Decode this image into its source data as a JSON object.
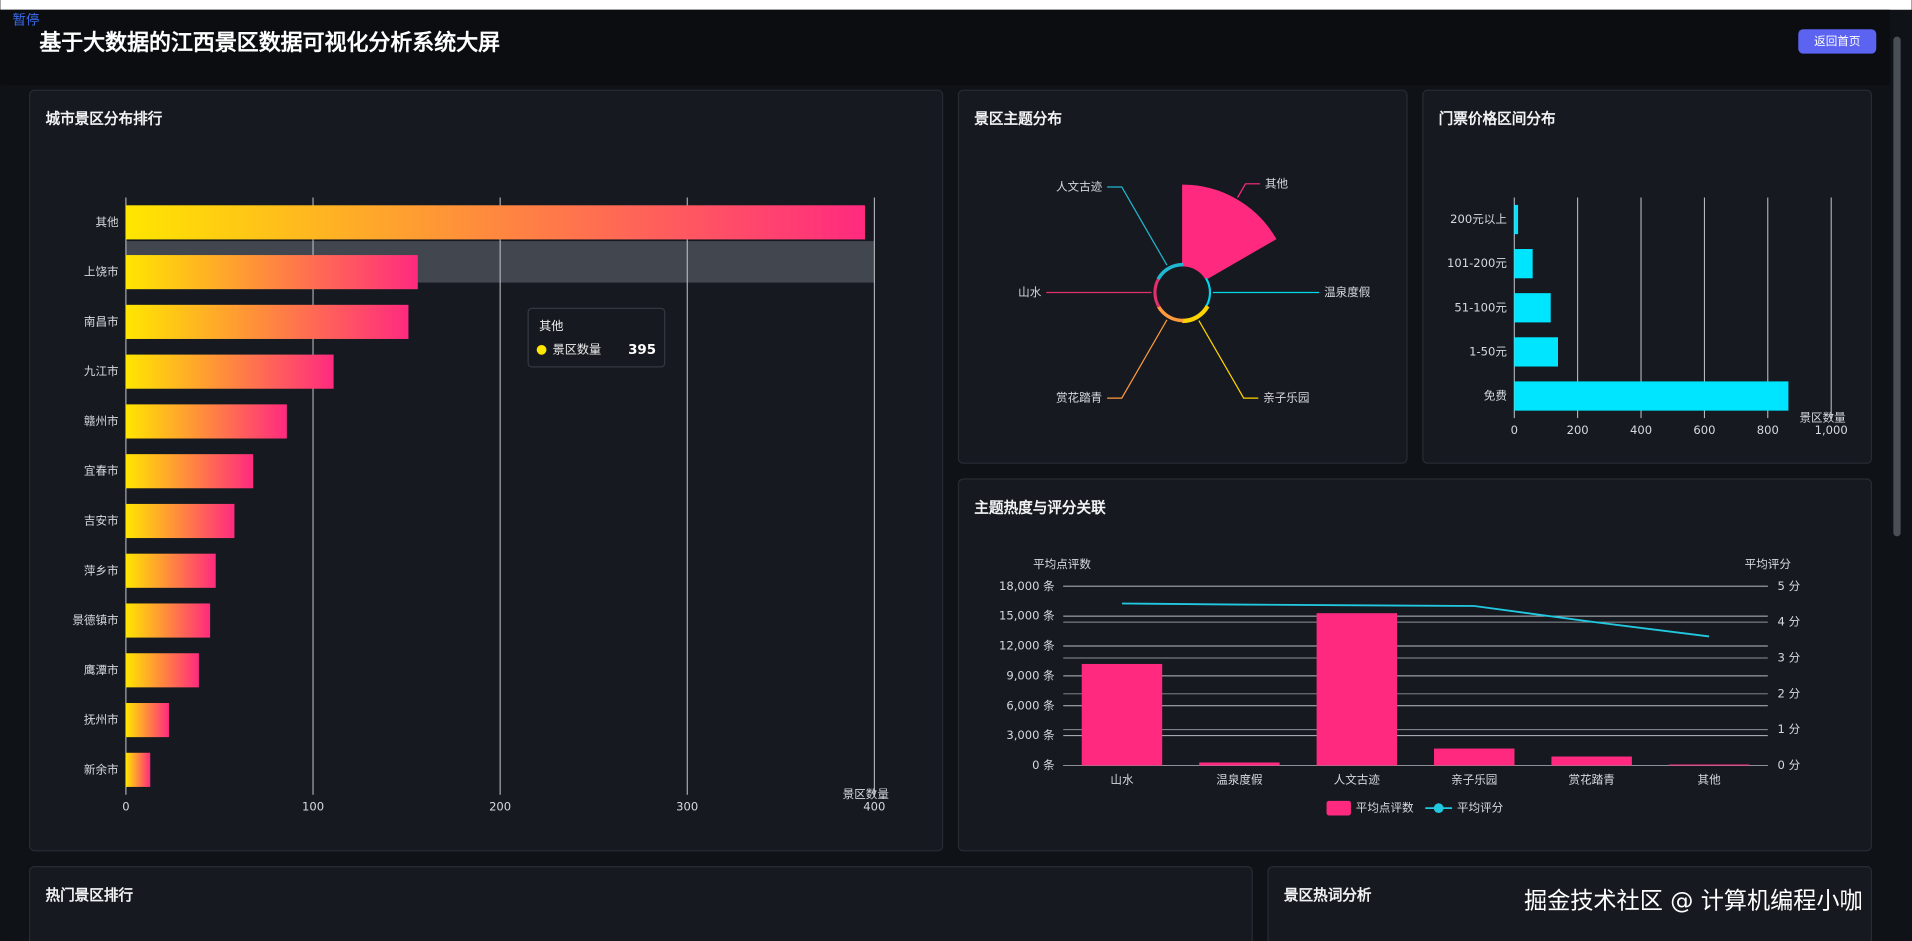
{
  "header": {
    "pause_label": "暂停",
    "title": "基于大数据的江西景区数据可视化分析系统大屏",
    "button": "返回首页"
  },
  "chart_data": [
    {
      "type": "barh",
      "title": "城市景区分布排行",
      "categories": [
        "其他",
        "上饶市",
        "南昌市",
        "九江市",
        "赣州市",
        "宜春市",
        "吉安市",
        "萍乡市",
        "景德镇市",
        "鹰潭市",
        "抚州市",
        "新余市"
      ],
      "series": [
        {
          "name": "景区数量",
          "color": [
            "#ffe600",
            "#ff2a7f"
          ],
          "values": [
            395,
            156,
            151,
            111,
            86,
            68,
            58,
            48,
            45,
            39,
            23,
            13
          ]
        }
      ],
      "xlabel": "景区数量",
      "xlim": [
        0,
        400
      ],
      "xticks": [
        0,
        100,
        200,
        300,
        400
      ],
      "grid": true
    },
    {
      "type": "pie",
      "title": "景区主题分布",
      "rose_type": "area",
      "categories": [
        "其他",
        "温泉度假",
        "亲子乐园",
        "赏花踏青",
        "山水",
        "人文古迹"
      ],
      "values": [
        1050,
        12,
        40,
        30,
        25,
        30
      ],
      "colors": [
        "#ff2a7f",
        "#00d8f0",
        "#ffd400",
        "#ff9a3c",
        "#e0306a",
        "#1fb8d0"
      ]
    },
    {
      "type": "barh",
      "title": "门票价格区间分布",
      "categories": [
        "200元以上",
        "101-200元",
        "51-100元",
        "1-50元",
        "免费"
      ],
      "series": [
        {
          "name": "景区数量",
          "color": "#00e5ff",
          "values": [
            12,
            58,
            115,
            138,
            865
          ]
        }
      ],
      "xlabel": "景区数量",
      "xlim": [
        0,
        1000
      ],
      "xticks": [
        0,
        200,
        400,
        600,
        800,
        {
          "value": 1000,
          "label": "1,000"
        }
      ],
      "grid": true
    },
    {
      "type": "bar",
      "title": "主题热度与评分关联",
      "categories": [
        "山水",
        "温泉度假",
        "人文古迹",
        "亲子乐园",
        "赏花踏青",
        "其他"
      ],
      "series": [
        {
          "name": "平均点评数",
          "color": "#ff2a7f",
          "values": [
            10200,
            300,
            15300,
            1700,
            900,
            100
          ]
        },
        {
          "name": "平均评分",
          "type": "line",
          "axis": "y2",
          "color": "#22c8e0",
          "values": [
            4.52,
            4.49,
            4.47,
            4.45,
            4.01,
            3.6
          ]
        }
      ],
      "ylabel": "平均点评数",
      "y2label": "平均评分",
      "ylim": [
        0,
        18000
      ],
      "yticks": [
        {
          "value": 0,
          "label": "0 条"
        },
        {
          "value": 3000,
          "label": "3,000 条"
        },
        {
          "value": 6000,
          "label": "6,000 条"
        },
        {
          "value": 9000,
          "label": "9,000 条"
        },
        {
          "value": 12000,
          "label": "12,000 条"
        },
        {
          "value": 15000,
          "label": "15,000 条"
        },
        {
          "value": 18000,
          "label": "18,000 条"
        }
      ],
      "y2lim": [
        0,
        5
      ],
      "y2ticks": [
        {
          "value": 0,
          "label": "0 分"
        },
        {
          "value": 1,
          "label": "1 分"
        },
        {
          "value": 2,
          "label": "2 分"
        },
        {
          "value": 3,
          "label": "3 分"
        },
        {
          "value": 4,
          "label": "4 分"
        },
        {
          "value": 5,
          "label": "5 分"
        }
      ],
      "grid": true,
      "legend": "bottom"
    }
  ],
  "panels": {
    "hot_spots_title": "热门景区排行",
    "hot_words_title": "景区热词分析"
  },
  "watermark": "掘金技术社区 @ 计算机编程小咖"
}
